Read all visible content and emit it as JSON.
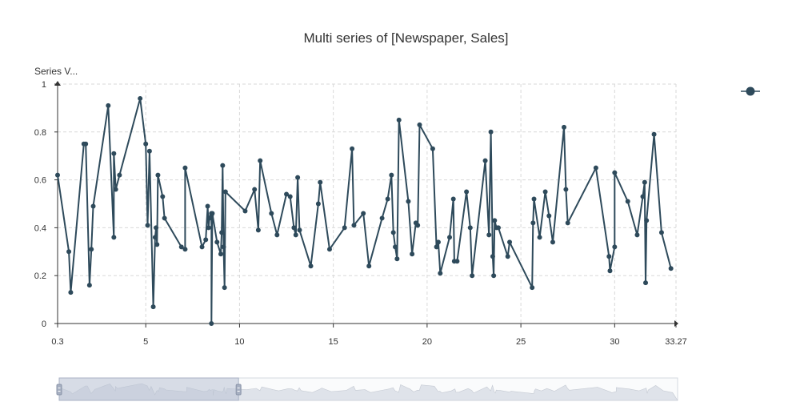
{
  "chart_data": {
    "type": "line",
    "title": "Multi series of [Newspaper, Sales]",
    "ylabel": "Series V...",
    "xlabel": "",
    "xlim": [
      0.3,
      33.27
    ],
    "ylim": [
      0,
      1
    ],
    "x_ticks": [
      "0.3",
      "5",
      "10",
      "15",
      "20",
      "25",
      "30",
      "33.27"
    ],
    "y_ticks": [
      "0",
      "0.2",
      "0.4",
      "0.6",
      "0.8",
      "1"
    ],
    "grid": true,
    "legend": "top-right",
    "series": [
      {
        "color": "#2e4a5b",
        "points": [
          [
            0.3,
            0.62
          ],
          [
            0.9,
            0.3
          ],
          [
            1.0,
            0.13
          ],
          [
            1.7,
            0.75
          ],
          [
            1.8,
            0.75
          ],
          [
            2.0,
            0.16
          ],
          [
            2.1,
            0.31
          ],
          [
            2.2,
            0.49
          ],
          [
            3.0,
            0.91
          ],
          [
            3.3,
            0.36
          ],
          [
            3.3,
            0.71
          ],
          [
            3.4,
            0.56
          ],
          [
            3.6,
            0.62
          ],
          [
            4.7,
            0.94
          ],
          [
            5.0,
            0.75
          ],
          [
            5.1,
            0.41
          ],
          [
            5.2,
            0.72
          ],
          [
            5.4,
            0.07
          ],
          [
            5.5,
            0.36
          ],
          [
            5.55,
            0.4
          ],
          [
            5.6,
            0.33
          ],
          [
            5.65,
            0.62
          ],
          [
            5.9,
            0.53
          ],
          [
            6.0,
            0.44
          ],
          [
            6.9,
            0.32
          ],
          [
            7.1,
            0.31
          ],
          [
            7.1,
            0.65
          ],
          [
            8.0,
            0.32
          ],
          [
            8.2,
            0.35
          ],
          [
            8.3,
            0.49
          ],
          [
            8.35,
            0.4
          ],
          [
            8.4,
            0.44
          ],
          [
            8.5,
            0.46
          ],
          [
            8.5,
            0.45
          ],
          [
            8.5,
            0.0
          ],
          [
            8.55,
            0.46
          ],
          [
            8.8,
            0.34
          ],
          [
            9.0,
            0.29
          ],
          [
            9.05,
            0.38
          ],
          [
            9.1,
            0.66
          ],
          [
            9.15,
            0.32
          ],
          [
            9.2,
            0.15
          ],
          [
            9.25,
            0.55
          ],
          [
            10.3,
            0.47
          ],
          [
            10.8,
            0.56
          ],
          [
            11.0,
            0.39
          ],
          [
            11.1,
            0.68
          ],
          [
            11.7,
            0.46
          ],
          [
            12.0,
            0.37
          ],
          [
            12.5,
            0.54
          ],
          [
            12.7,
            0.53
          ],
          [
            12.9,
            0.4
          ],
          [
            13.0,
            0.37
          ],
          [
            13.1,
            0.61
          ],
          [
            13.2,
            0.39
          ],
          [
            13.8,
            0.24
          ],
          [
            14.2,
            0.5
          ],
          [
            14.3,
            0.59
          ],
          [
            14.8,
            0.31
          ],
          [
            15.6,
            0.4
          ],
          [
            16.0,
            0.73
          ],
          [
            16.1,
            0.41
          ],
          [
            16.6,
            0.46
          ],
          [
            16.9,
            0.24
          ],
          [
            17.6,
            0.44
          ],
          [
            17.9,
            0.52
          ],
          [
            18.1,
            0.62
          ],
          [
            18.2,
            0.38
          ],
          [
            18.3,
            0.32
          ],
          [
            18.4,
            0.27
          ],
          [
            18.5,
            0.85
          ],
          [
            19.0,
            0.51
          ],
          [
            19.2,
            0.29
          ],
          [
            19.4,
            0.42
          ],
          [
            19.5,
            0.41
          ],
          [
            19.6,
            0.83
          ],
          [
            20.3,
            0.73
          ],
          [
            20.5,
            0.32
          ],
          [
            20.6,
            0.34
          ],
          [
            20.7,
            0.21
          ],
          [
            21.2,
            0.36
          ],
          [
            21.4,
            0.52
          ],
          [
            21.45,
            0.26
          ],
          [
            21.6,
            0.26
          ],
          [
            22.1,
            0.55
          ],
          [
            22.3,
            0.4
          ],
          [
            22.4,
            0.2
          ],
          [
            23.1,
            0.68
          ],
          [
            23.3,
            0.37
          ],
          [
            23.4,
            0.8
          ],
          [
            23.5,
            0.28
          ],
          [
            23.55,
            0.2
          ],
          [
            23.6,
            0.43
          ],
          [
            23.7,
            0.4
          ],
          [
            23.8,
            0.4
          ],
          [
            24.3,
            0.28
          ],
          [
            24.4,
            0.34
          ],
          [
            25.6,
            0.15
          ],
          [
            25.65,
            0.42
          ],
          [
            25.7,
            0.52
          ],
          [
            26.0,
            0.36
          ],
          [
            26.3,
            0.55
          ],
          [
            26.5,
            0.45
          ],
          [
            26.7,
            0.34
          ],
          [
            27.3,
            0.82
          ],
          [
            27.4,
            0.56
          ],
          [
            27.5,
            0.42
          ],
          [
            29.0,
            0.65
          ],
          [
            29.7,
            0.28
          ],
          [
            29.75,
            0.22
          ],
          [
            30.0,
            0.32
          ],
          [
            30.0,
            0.63
          ],
          [
            30.7,
            0.51
          ],
          [
            31.2,
            0.37
          ],
          [
            31.5,
            0.53
          ],
          [
            31.6,
            0.59
          ],
          [
            31.65,
            0.17
          ],
          [
            31.7,
            0.43
          ],
          [
            32.1,
            0.79
          ],
          [
            32.5,
            0.38
          ],
          [
            33.0,
            0.23
          ]
        ]
      }
    ]
  },
  "zoom_slider": {
    "range": [
      0,
      0.29
    ]
  }
}
